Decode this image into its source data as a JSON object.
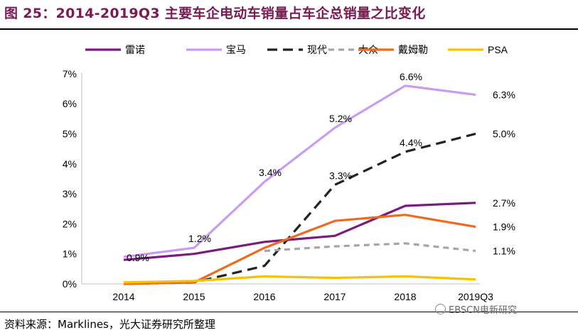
{
  "title": "图 25：2014-2019Q3 主要车企电动车销量占车企总销量之比变化",
  "source": "资料来源：Marklines，光大证券研究所整理",
  "watermark": "EBSCN电新研究",
  "chart_data": {
    "type": "line",
    "categories": [
      "2014",
      "2015",
      "2016",
      "2017",
      "2018",
      "2019Q3"
    ],
    "y_ticks": [
      "0%",
      "1%",
      "2%",
      "3%",
      "4%",
      "5%",
      "6%",
      "7%"
    ],
    "ylim": [
      0,
      7
    ],
    "grid": false,
    "legend_position": "top",
    "series": [
      {
        "name": "雷诺",
        "color": "#7b1a7e",
        "dash": "solid",
        "values": [
          0.8,
          1.0,
          1.4,
          1.6,
          2.6,
          2.7
        ]
      },
      {
        "name": "宝马",
        "color": "#c89cf0",
        "dash": "solid",
        "values": [
          0.9,
          1.2,
          3.4,
          5.2,
          6.6,
          6.3
        ]
      },
      {
        "name": "现代",
        "color": "#222222",
        "dash": "long-dash",
        "values": [
          0.0,
          0.05,
          0.6,
          3.3,
          4.4,
          5.0
        ]
      },
      {
        "name": "大众",
        "color": "#a6a6a6",
        "dash": "dash",
        "values": [
          null,
          null,
          1.1,
          1.25,
          1.35,
          1.1
        ]
      },
      {
        "name": "戴姆勒",
        "color": "#ee6a1e",
        "dash": "solid",
        "values": [
          0.0,
          0.05,
          1.2,
          2.1,
          2.3,
          1.9
        ]
      },
      {
        "name": "PSA",
        "color": "#f5c200",
        "dash": "solid",
        "values": [
          0.05,
          0.1,
          0.25,
          0.2,
          0.25,
          0.15
        ]
      }
    ],
    "annotations": [
      {
        "text": "0.9%",
        "series": "宝马",
        "index": 0
      },
      {
        "text": "1.2%",
        "series": "宝马",
        "index": 1
      },
      {
        "text": "3.4%",
        "series": "宝马",
        "index": 2
      },
      {
        "text": "5.2%",
        "series": "宝马",
        "index": 3
      },
      {
        "text": "6.6%",
        "series": "宝马",
        "index": 4
      },
      {
        "text": "6.3%",
        "series": "宝马",
        "index": 5
      },
      {
        "text": "3.3%",
        "series": "现代",
        "index": 3
      },
      {
        "text": "4.4%",
        "series": "现代",
        "index": 4
      },
      {
        "text": "5.0%",
        "series": "现代",
        "index": 5
      },
      {
        "text": "2.7%",
        "series": "雷诺",
        "index": 5
      },
      {
        "text": "1.9%",
        "series": "戴姆勒",
        "index": 5
      },
      {
        "text": "1.1%",
        "series": "大众",
        "index": 5
      }
    ]
  }
}
